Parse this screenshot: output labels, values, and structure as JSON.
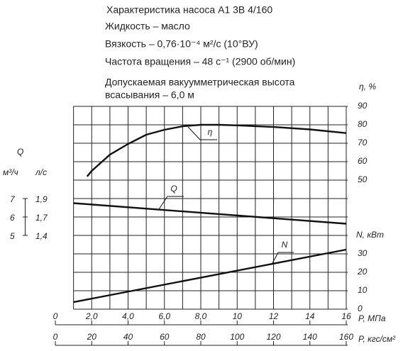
{
  "chart_data": {
    "type": "line",
    "title_lines": [
      "Характеристика насоса А1 3В 4/160",
      "Жидкость – масло",
      "Вязкость – 0,76·10⁻⁴ м²/с (10°ВУ)",
      "Частота вращения – 48 с⁻¹ (2900 об/мин)",
      "Допускаемая вакуумметрическая высота",
      "всасывания – 6,0 м"
    ],
    "xlabel": "P, МПа",
    "x2label": "P, кгс/см²",
    "xlim": [
      0,
      16
    ],
    "xticks": [
      0,
      {
        "value": 2,
        "label": "2,0"
      },
      {
        "value": 4,
        "label": "4,0"
      },
      {
        "value": 6,
        "label": "6,0"
      },
      {
        "value": 8,
        "label": "8,0"
      },
      10,
      12,
      14,
      16
    ],
    "xminor": [
      1,
      3,
      5,
      7,
      9,
      11,
      13,
      15
    ],
    "x2lim": [
      0,
      160
    ],
    "x2ticks": [
      0,
      20,
      40,
      60,
      80,
      100,
      120,
      140,
      160
    ],
    "eta_label": "η, %",
    "eta_lim": [
      50,
      90
    ],
    "eta_ticks": [
      50,
      60,
      70,
      80,
      90
    ],
    "n_label": "N, кВт",
    "n_lim": [
      0,
      30
    ],
    "n_ticks": [
      0,
      10,
      20,
      30
    ],
    "q_label": "Q",
    "q_unit_m3h": "м³/ч",
    "q_unit_ls": "л/с",
    "q_ticks": [
      {
        "value": 1.9,
        "label": "1,9"
      },
      {
        "value": 1.7,
        "label": "1,7"
      },
      {
        "value": 1.4,
        "label": "1,4"
      }
    ],
    "q_ticks_m3h": [
      7,
      6,
      5
    ],
    "grid": true,
    "series": [
      {
        "name": "η",
        "axis": "eta",
        "color": "#111111",
        "x": [
          1.75,
          2,
          3,
          4,
          5,
          6,
          7,
          8,
          9,
          10,
          12,
          14,
          16
        ],
        "values": [
          52,
          55,
          63.8,
          69.6,
          74.6,
          77.3,
          79.2,
          80,
          80,
          79.7,
          78.8,
          77.5,
          75.5
        ]
      },
      {
        "name": "Q",
        "axis": "q",
        "color": "#111111",
        "x": [
          1,
          16
        ],
        "values": [
          1.85,
          1.59
        ]
      },
      {
        "name": "N",
        "axis": "n",
        "color": "#111111",
        "x": [
          1,
          16
        ],
        "values": [
          3.8,
          32.3
        ]
      }
    ]
  }
}
